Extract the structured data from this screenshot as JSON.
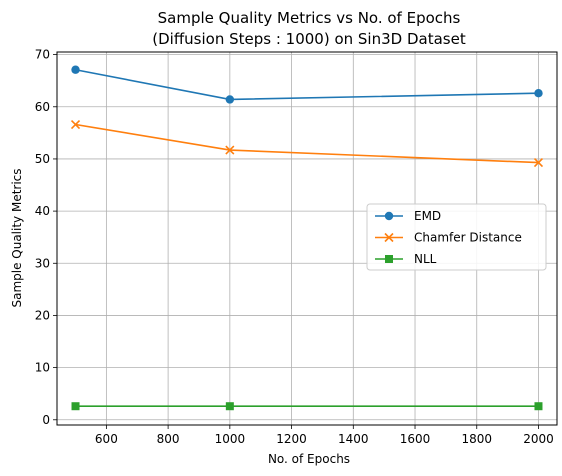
{
  "chart_data": {
    "type": "line",
    "title_line1": "Sample Quality Metrics vs No. of Epochs",
    "title_line2": "(Diffusion Steps : 1000) on Sin3D Dataset",
    "xlabel": "No. of Epochs",
    "ylabel": "Sample Quality Metrics",
    "x": [
      500,
      1000,
      2000
    ],
    "xlim": [
      440,
      2060
    ],
    "ylim": [
      -1,
      70.5
    ],
    "xticks": [
      600,
      800,
      1000,
      1200,
      1400,
      1600,
      1800,
      2000
    ],
    "yticks": [
      0,
      10,
      20,
      30,
      40,
      50,
      60,
      70
    ],
    "grid": true,
    "legend_position": "center-right",
    "series": [
      {
        "name": "EMD",
        "values": [
          67.1,
          61.4,
          62.6
        ],
        "color": "#1f77b4",
        "marker": "circle"
      },
      {
        "name": "Chamfer Distance",
        "values": [
          56.6,
          51.7,
          49.3
        ],
        "color": "#ff7f0e",
        "marker": "x"
      },
      {
        "name": "NLL",
        "values": [
          2.6,
          2.6,
          2.6
        ],
        "color": "#2ca02c",
        "marker": "square"
      }
    ]
  }
}
